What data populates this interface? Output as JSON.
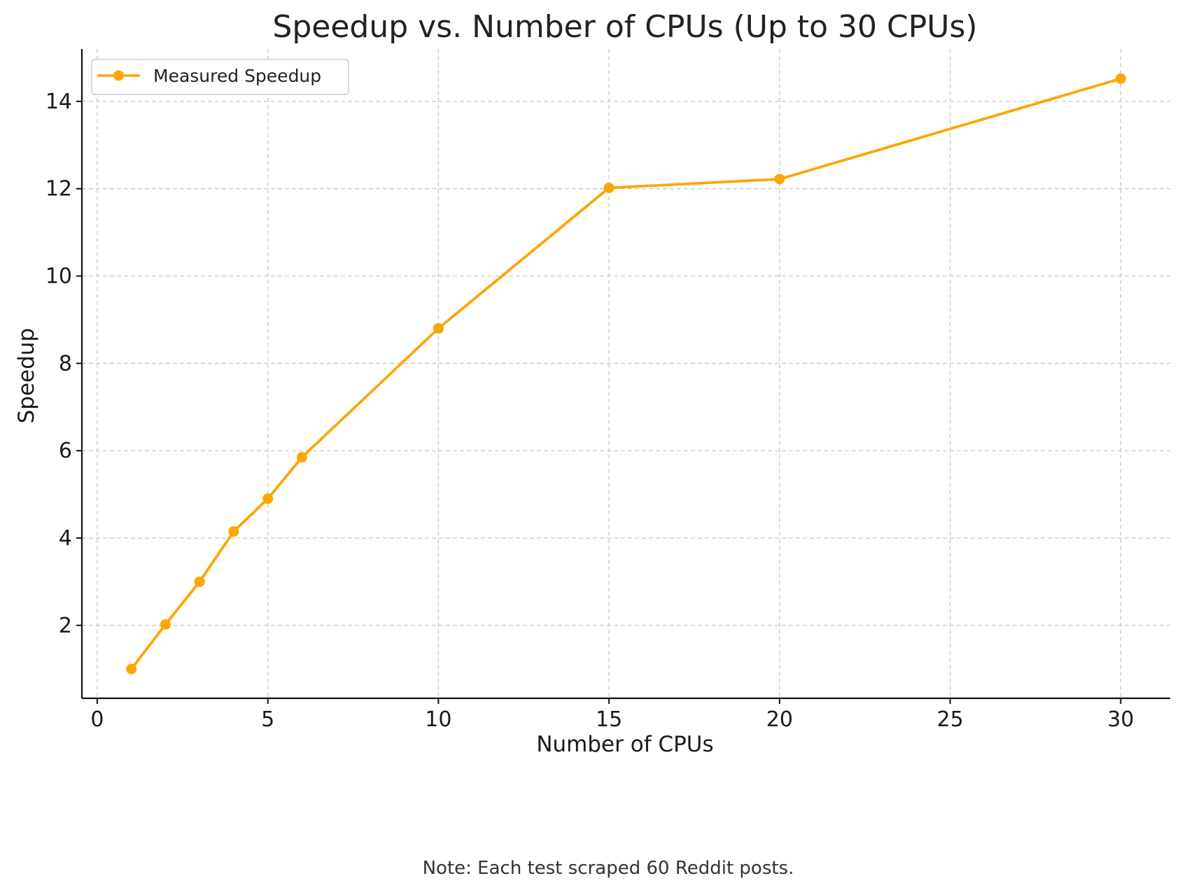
{
  "chart_data": {
    "type": "line",
    "title": "Speedup vs. Number of CPUs (Up to 30 CPUs)",
    "xlabel": "Number of CPUs",
    "ylabel": "Speedup",
    "xlim": [
      -0.45,
      31.45
    ],
    "ylim": [
      0.33,
      15.2
    ],
    "xticks": [
      0,
      5,
      10,
      15,
      20,
      25,
      30
    ],
    "yticks": [
      2,
      4,
      6,
      8,
      10,
      12,
      14
    ],
    "grid": true,
    "legend_position": "top-left",
    "series": [
      {
        "name": "Measured Speedup",
        "color": "#FFA500",
        "x": [
          1,
          2,
          3,
          4,
          5,
          6,
          10,
          15,
          20,
          30
        ],
        "y": [
          1.0,
          2.02,
          3.0,
          4.15,
          4.9,
          5.85,
          8.8,
          12.02,
          12.22,
          14.52
        ]
      }
    ],
    "note": "Note: Each test scraped 60 Reddit posts."
  }
}
